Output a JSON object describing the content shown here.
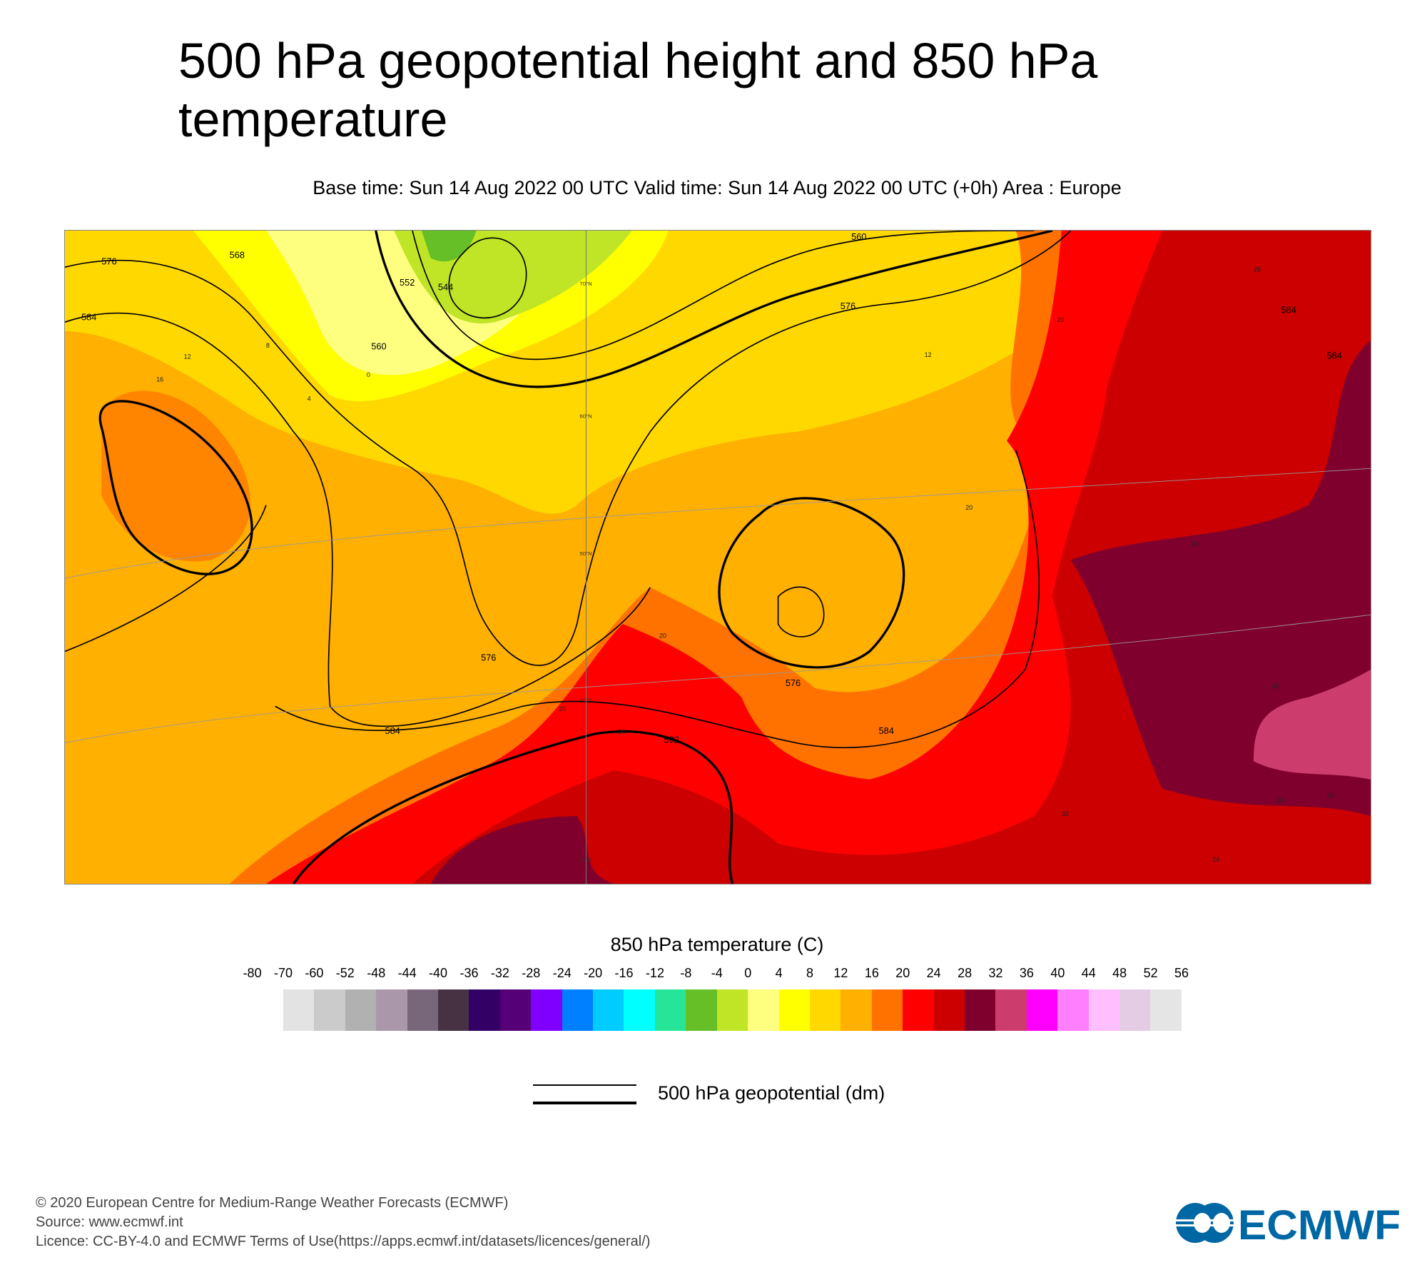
{
  "title": "500 hPa geopotential height and 850 hPa temperature",
  "subtitle": "Base time: Sun 14 Aug 2022 00 UTC Valid time: Sun 14 Aug 2022 00 UTC (+0h) Area : Europe",
  "map": {
    "area": "Europe",
    "contour_labels": [
      "576",
      "584",
      "568",
      "560",
      "552",
      "544",
      "560",
      "576",
      "584",
      "576",
      "584",
      "592",
      "584",
      "576",
      "584"
    ],
    "latitude_labels": [
      "70°N",
      "60°N",
      "50°N",
      "40°N",
      "30°N"
    ],
    "temperature_labels": [
      "12",
      "16",
      "8",
      "4",
      "0",
      "20",
      "20",
      "24",
      "24",
      "28",
      "32",
      "32",
      "28",
      "24",
      "20",
      "12",
      "20",
      "24"
    ]
  },
  "colorbar": {
    "title": "850 hPa temperature (C)",
    "labels": [
      "-80",
      "-70",
      "-60",
      "-52",
      "-48",
      "-44",
      "-40",
      "-36",
      "-32",
      "-28",
      "-24",
      "-20",
      "-16",
      "-12",
      "-8",
      "-4",
      "0",
      "4",
      "8",
      "12",
      "16",
      "20",
      "24",
      "28",
      "32",
      "36",
      "40",
      "44",
      "48",
      "52",
      "56"
    ],
    "colors": [
      "#e3e3e3",
      "#cbcbcb",
      "#b1b1b1",
      "#aa97aa",
      "#78667b",
      "#463243",
      "#330066",
      "#560078",
      "#7f00ff",
      "#0080ff",
      "#00ccff",
      "#00ffff",
      "#26e599",
      "#66bf26",
      "#bfe526",
      "#ffff7f",
      "#ffff00",
      "#ffd800",
      "#ffb000",
      "#ff7200",
      "#ff0000",
      "#cc0000",
      "#7f002c",
      "#cc3d6e",
      "#ff00ff",
      "#ff7fff",
      "#ffbfff",
      "#e5cce5",
      "#e5e5e5"
    ]
  },
  "legend": {
    "label": "500 hPa geopotential (dm)"
  },
  "footer": {
    "copyright": "© 2020 European Centre for Medium-Range Weather Forecasts (ECMWF)",
    "source": "Source: www.ecmwf.int",
    "licence": "Licence: CC-BY-4.0 and ECMWF Terms of Use(https://apps.ecmwf.int/datasets/licences/general/)"
  },
  "logo": {
    "text": "ECMWF",
    "color": "#0067a5"
  }
}
